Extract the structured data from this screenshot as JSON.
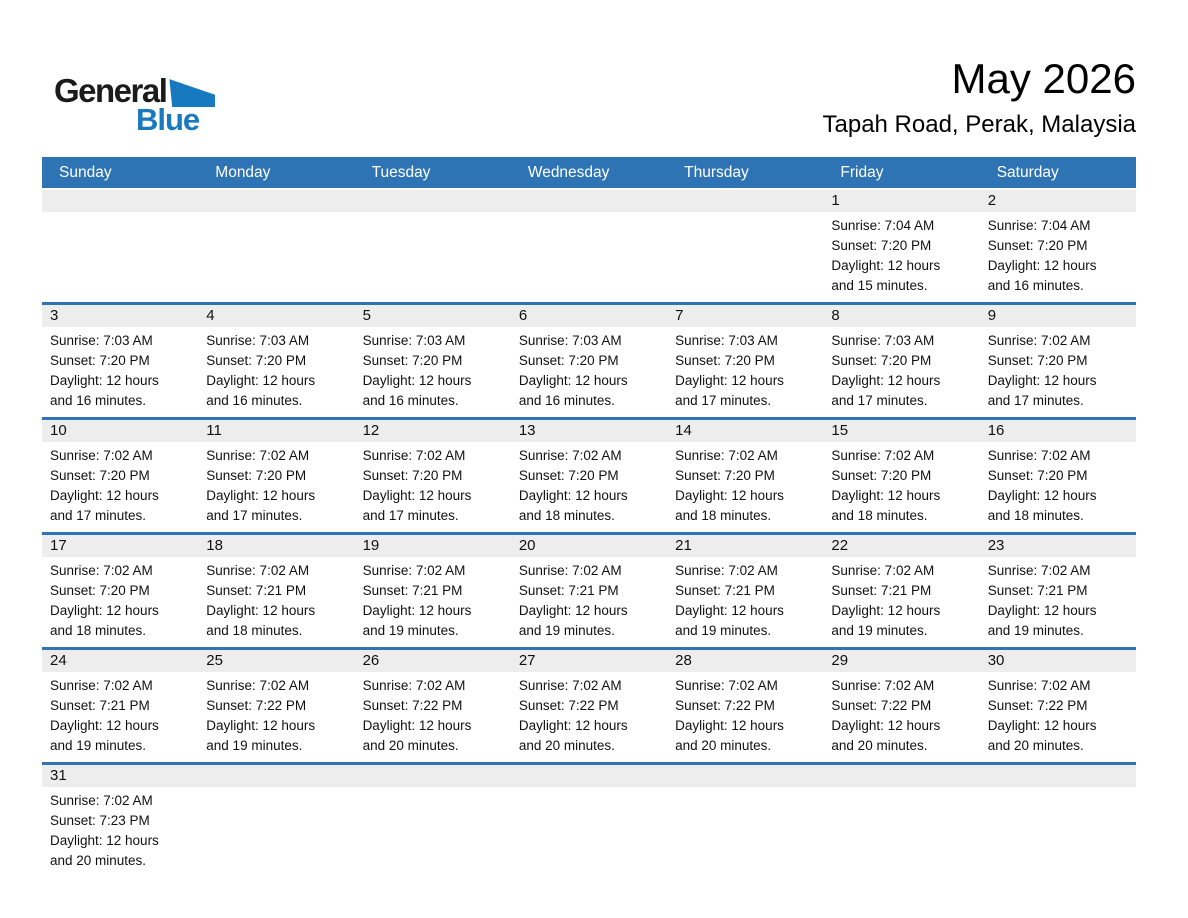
{
  "logo": {
    "part1": "General",
    "part2": "Blue",
    "triangle_icon": "blue-right-triangle"
  },
  "header": {
    "month_title": "May 2026",
    "location": "Tapah Road, Perak, Malaysia"
  },
  "colors": {
    "header_blue": "#2E74B5",
    "logo_blue": "#1779C0",
    "band_gray": "#EDEDED"
  },
  "weekdays": [
    "Sunday",
    "Monday",
    "Tuesday",
    "Wednesday",
    "Thursday",
    "Friday",
    "Saturday"
  ],
  "weeks": [
    [
      null,
      null,
      null,
      null,
      null,
      {
        "day": "1",
        "sunrise": "Sunrise: 7:04 AM",
        "sunset": "Sunset: 7:20 PM",
        "daylight": "Daylight: 12 hours and 15 minutes."
      },
      {
        "day": "2",
        "sunrise": "Sunrise: 7:04 AM",
        "sunset": "Sunset: 7:20 PM",
        "daylight": "Daylight: 12 hours and 16 minutes."
      }
    ],
    [
      {
        "day": "3",
        "sunrise": "Sunrise: 7:03 AM",
        "sunset": "Sunset: 7:20 PM",
        "daylight": "Daylight: 12 hours and 16 minutes."
      },
      {
        "day": "4",
        "sunrise": "Sunrise: 7:03 AM",
        "sunset": "Sunset: 7:20 PM",
        "daylight": "Daylight: 12 hours and 16 minutes."
      },
      {
        "day": "5",
        "sunrise": "Sunrise: 7:03 AM",
        "sunset": "Sunset: 7:20 PM",
        "daylight": "Daylight: 12 hours and 16 minutes."
      },
      {
        "day": "6",
        "sunrise": "Sunrise: 7:03 AM",
        "sunset": "Sunset: 7:20 PM",
        "daylight": "Daylight: 12 hours and 16 minutes."
      },
      {
        "day": "7",
        "sunrise": "Sunrise: 7:03 AM",
        "sunset": "Sunset: 7:20 PM",
        "daylight": "Daylight: 12 hours and 17 minutes."
      },
      {
        "day": "8",
        "sunrise": "Sunrise: 7:03 AM",
        "sunset": "Sunset: 7:20 PM",
        "daylight": "Daylight: 12 hours and 17 minutes."
      },
      {
        "day": "9",
        "sunrise": "Sunrise: 7:02 AM",
        "sunset": "Sunset: 7:20 PM",
        "daylight": "Daylight: 12 hours and 17 minutes."
      }
    ],
    [
      {
        "day": "10",
        "sunrise": "Sunrise: 7:02 AM",
        "sunset": "Sunset: 7:20 PM",
        "daylight": "Daylight: 12 hours and 17 minutes."
      },
      {
        "day": "11",
        "sunrise": "Sunrise: 7:02 AM",
        "sunset": "Sunset: 7:20 PM",
        "daylight": "Daylight: 12 hours and 17 minutes."
      },
      {
        "day": "12",
        "sunrise": "Sunrise: 7:02 AM",
        "sunset": "Sunset: 7:20 PM",
        "daylight": "Daylight: 12 hours and 17 minutes."
      },
      {
        "day": "13",
        "sunrise": "Sunrise: 7:02 AM",
        "sunset": "Sunset: 7:20 PM",
        "daylight": "Daylight: 12 hours and 18 minutes."
      },
      {
        "day": "14",
        "sunrise": "Sunrise: 7:02 AM",
        "sunset": "Sunset: 7:20 PM",
        "daylight": "Daylight: 12 hours and 18 minutes."
      },
      {
        "day": "15",
        "sunrise": "Sunrise: 7:02 AM",
        "sunset": "Sunset: 7:20 PM",
        "daylight": "Daylight: 12 hours and 18 minutes."
      },
      {
        "day": "16",
        "sunrise": "Sunrise: 7:02 AM",
        "sunset": "Sunset: 7:20 PM",
        "daylight": "Daylight: 12 hours and 18 minutes."
      }
    ],
    [
      {
        "day": "17",
        "sunrise": "Sunrise: 7:02 AM",
        "sunset": "Sunset: 7:20 PM",
        "daylight": "Daylight: 12 hours and 18 minutes."
      },
      {
        "day": "18",
        "sunrise": "Sunrise: 7:02 AM",
        "sunset": "Sunset: 7:21 PM",
        "daylight": "Daylight: 12 hours and 18 minutes."
      },
      {
        "day": "19",
        "sunrise": "Sunrise: 7:02 AM",
        "sunset": "Sunset: 7:21 PM",
        "daylight": "Daylight: 12 hours and 19 minutes."
      },
      {
        "day": "20",
        "sunrise": "Sunrise: 7:02 AM",
        "sunset": "Sunset: 7:21 PM",
        "daylight": "Daylight: 12 hours and 19 minutes."
      },
      {
        "day": "21",
        "sunrise": "Sunrise: 7:02 AM",
        "sunset": "Sunset: 7:21 PM",
        "daylight": "Daylight: 12 hours and 19 minutes."
      },
      {
        "day": "22",
        "sunrise": "Sunrise: 7:02 AM",
        "sunset": "Sunset: 7:21 PM",
        "daylight": "Daylight: 12 hours and 19 minutes."
      },
      {
        "day": "23",
        "sunrise": "Sunrise: 7:02 AM",
        "sunset": "Sunset: 7:21 PM",
        "daylight": "Daylight: 12 hours and 19 minutes."
      }
    ],
    [
      {
        "day": "24",
        "sunrise": "Sunrise: 7:02 AM",
        "sunset": "Sunset: 7:21 PM",
        "daylight": "Daylight: 12 hours and 19 minutes."
      },
      {
        "day": "25",
        "sunrise": "Sunrise: 7:02 AM",
        "sunset": "Sunset: 7:22 PM",
        "daylight": "Daylight: 12 hours and 19 minutes."
      },
      {
        "day": "26",
        "sunrise": "Sunrise: 7:02 AM",
        "sunset": "Sunset: 7:22 PM",
        "daylight": "Daylight: 12 hours and 20 minutes."
      },
      {
        "day": "27",
        "sunrise": "Sunrise: 7:02 AM",
        "sunset": "Sunset: 7:22 PM",
        "daylight": "Daylight: 12 hours and 20 minutes."
      },
      {
        "day": "28",
        "sunrise": "Sunrise: 7:02 AM",
        "sunset": "Sunset: 7:22 PM",
        "daylight": "Daylight: 12 hours and 20 minutes."
      },
      {
        "day": "29",
        "sunrise": "Sunrise: 7:02 AM",
        "sunset": "Sunset: 7:22 PM",
        "daylight": "Daylight: 12 hours and 20 minutes."
      },
      {
        "day": "30",
        "sunrise": "Sunrise: 7:02 AM",
        "sunset": "Sunset: 7:22 PM",
        "daylight": "Daylight: 12 hours and 20 minutes."
      }
    ],
    [
      {
        "day": "31",
        "sunrise": "Sunrise: 7:02 AM",
        "sunset": "Sunset: 7:23 PM",
        "daylight": "Daylight: 12 hours and 20 minutes."
      },
      null,
      null,
      null,
      null,
      null,
      null
    ]
  ]
}
